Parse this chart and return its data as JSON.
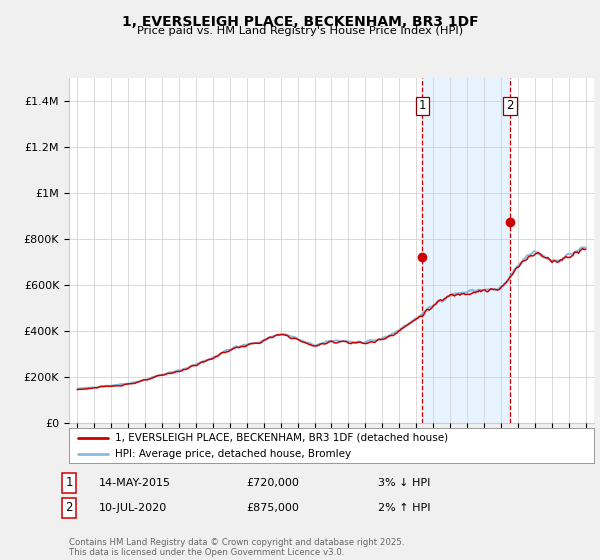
{
  "title": "1, EVERSLEIGH PLACE, BECKENHAM, BR3 1DF",
  "subtitle": "Price paid vs. HM Land Registry's House Price Index (HPI)",
  "legend_line1": "1, EVERSLEIGH PLACE, BECKENHAM, BR3 1DF (detached house)",
  "legend_line2": "HPI: Average price, detached house, Bromley",
  "annotation1": {
    "label": "1",
    "date_str": "14-MAY-2015",
    "price": 720000,
    "pct": "3%",
    "dir": "↓",
    "year": 2015.37
  },
  "annotation2": {
    "label": "2",
    "date_str": "10-JUL-2020",
    "price": 875000,
    "pct": "2%",
    "dir": "↑",
    "year": 2020.53
  },
  "footer": "Contains HM Land Registry data © Crown copyright and database right 2025.\nThis data is licensed under the Open Government Licence v3.0.",
  "ylim": [
    0,
    1500000
  ],
  "xlim": [
    1994.5,
    2025.5
  ],
  "yticks": [
    0,
    200000,
    400000,
    600000,
    800000,
    1000000,
    1200000,
    1400000
  ],
  "ytick_labels": [
    "£0",
    "£200K",
    "£400K",
    "£600K",
    "£800K",
    "£1M",
    "£1.2M",
    "£1.4M"
  ],
  "xticks": [
    1995,
    1996,
    1997,
    1998,
    1999,
    2000,
    2001,
    2002,
    2003,
    2004,
    2005,
    2006,
    2007,
    2008,
    2009,
    2010,
    2011,
    2012,
    2013,
    2014,
    2015,
    2016,
    2017,
    2018,
    2019,
    2020,
    2021,
    2022,
    2023,
    2024,
    2025
  ],
  "color_red": "#cc0000",
  "color_blue": "#88bbdd",
  "color_shade": "#ddeeff",
  "color_dashed": "#cc0000",
  "bg_color": "#f0f0f0",
  "plot_bg": "#ffffff",
  "legend_bg": "#ffffff"
}
